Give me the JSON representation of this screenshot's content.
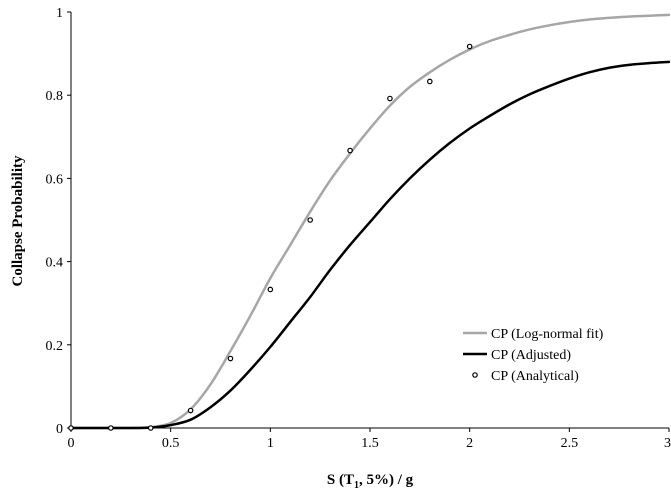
{
  "chart_data": {
    "type": "line",
    "xlabel": {
      "main": "S (T",
      "sub": "1",
      "rest": ", 5%) / g"
    },
    "ylabel": "Collapse Probability",
    "xlim": [
      0,
      3
    ],
    "ylim": [
      0,
      1
    ],
    "x_ticks": [
      0,
      0.5,
      1,
      1.5,
      2,
      2.5,
      3
    ],
    "x_tick_labels": [
      "0",
      "0.5",
      "1",
      "1.5",
      "2",
      "2.5",
      "3"
    ],
    "y_ticks": [
      0,
      0.2,
      0.4,
      0.6,
      0.8,
      1
    ],
    "y_tick_labels": [
      "0",
      "0.2",
      "0.4",
      "0.6",
      "0.8",
      "1"
    ],
    "grid": false,
    "legend_position": "bottom-right",
    "series": [
      {
        "name": "CP (Log-normal fit)",
        "style": "line",
        "color": "#a6a6a6",
        "x": [
          0.3,
          0.4,
          0.5,
          0.6,
          0.7,
          0.8,
          0.9,
          1.0,
          1.1,
          1.2,
          1.3,
          1.4,
          1.5,
          1.6,
          1.7,
          1.8,
          1.9,
          2.0,
          2.1,
          2.2,
          2.3,
          2.4,
          2.5,
          2.6,
          2.7,
          2.8,
          2.9,
          3.0
        ],
        "y": [
          0.0,
          0.002,
          0.012,
          0.045,
          0.105,
          0.185,
          0.27,
          0.36,
          0.44,
          0.52,
          0.595,
          0.66,
          0.72,
          0.775,
          0.82,
          0.855,
          0.885,
          0.91,
          0.93,
          0.945,
          0.958,
          0.968,
          0.976,
          0.982,
          0.986,
          0.989,
          0.991,
          0.993
        ]
      },
      {
        "name": "CP (Adjusted)",
        "style": "line",
        "color": "#000000",
        "x": [
          0.3,
          0.4,
          0.5,
          0.6,
          0.7,
          0.8,
          0.9,
          1.0,
          1.1,
          1.2,
          1.3,
          1.4,
          1.5,
          1.6,
          1.7,
          1.8,
          1.9,
          2.0,
          2.1,
          2.2,
          2.3,
          2.4,
          2.5,
          2.6,
          2.7,
          2.8,
          2.9,
          3.0
        ],
        "y": [
          0.0,
          0.001,
          0.007,
          0.02,
          0.05,
          0.09,
          0.14,
          0.195,
          0.255,
          0.315,
          0.38,
          0.44,
          0.495,
          0.55,
          0.6,
          0.645,
          0.685,
          0.72,
          0.75,
          0.778,
          0.802,
          0.822,
          0.84,
          0.855,
          0.866,
          0.873,
          0.877,
          0.88
        ]
      },
      {
        "name": "CP (Analytical)",
        "style": "scatter",
        "color": "#000000",
        "x": [
          0,
          0.2,
          0.4,
          0.6,
          0.8,
          1.0,
          1.2,
          1.4,
          1.6,
          1.8,
          2.0
        ],
        "y": [
          0,
          0,
          0,
          0.042,
          0.167,
          0.333,
          0.5,
          0.667,
          0.792,
          0.833,
          0.917
        ]
      }
    ]
  }
}
